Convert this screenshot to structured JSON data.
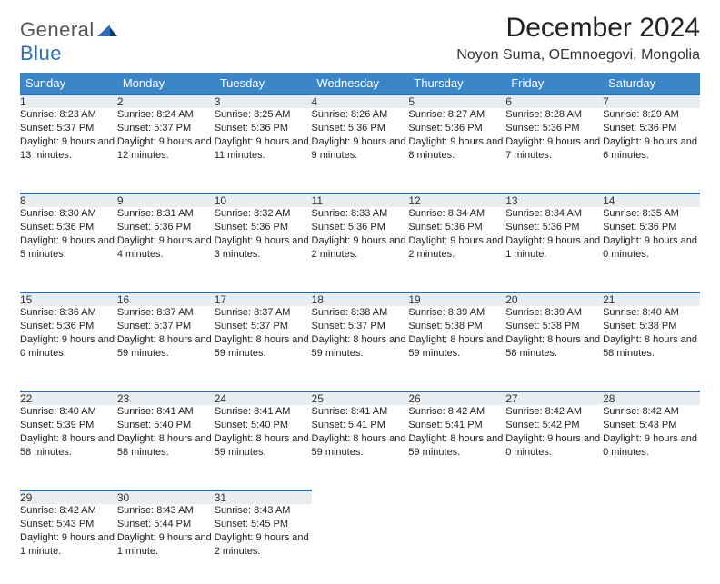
{
  "logo": {
    "word1": "General",
    "word2": "Blue"
  },
  "title": "December 2024",
  "location": "Noyon Suma, OEmnoegovi, Mongolia",
  "colors": {
    "header_bg": "#3b86c7",
    "header_text": "#ffffff",
    "daynum_bg": "#e9edef",
    "daynum_border": "#2a6fb5",
    "logo_gray": "#555555",
    "logo_blue": "#2a6fb5"
  },
  "weekdays": [
    "Sunday",
    "Monday",
    "Tuesday",
    "Wednesday",
    "Thursday",
    "Friday",
    "Saturday"
  ],
  "weeks": [
    [
      {
        "n": "1",
        "sunrise": "8:23 AM",
        "sunset": "5:37 PM",
        "daylight": "9 hours and 13 minutes."
      },
      {
        "n": "2",
        "sunrise": "8:24 AM",
        "sunset": "5:37 PM",
        "daylight": "9 hours and 12 minutes."
      },
      {
        "n": "3",
        "sunrise": "8:25 AM",
        "sunset": "5:36 PM",
        "daylight": "9 hours and 11 minutes."
      },
      {
        "n": "4",
        "sunrise": "8:26 AM",
        "sunset": "5:36 PM",
        "daylight": "9 hours and 9 minutes."
      },
      {
        "n": "5",
        "sunrise": "8:27 AM",
        "sunset": "5:36 PM",
        "daylight": "9 hours and 8 minutes."
      },
      {
        "n": "6",
        "sunrise": "8:28 AM",
        "sunset": "5:36 PM",
        "daylight": "9 hours and 7 minutes."
      },
      {
        "n": "7",
        "sunrise": "8:29 AM",
        "sunset": "5:36 PM",
        "daylight": "9 hours and 6 minutes."
      }
    ],
    [
      {
        "n": "8",
        "sunrise": "8:30 AM",
        "sunset": "5:36 PM",
        "daylight": "9 hours and 5 minutes."
      },
      {
        "n": "9",
        "sunrise": "8:31 AM",
        "sunset": "5:36 PM",
        "daylight": "9 hours and 4 minutes."
      },
      {
        "n": "10",
        "sunrise": "8:32 AM",
        "sunset": "5:36 PM",
        "daylight": "9 hours and 3 minutes."
      },
      {
        "n": "11",
        "sunrise": "8:33 AM",
        "sunset": "5:36 PM",
        "daylight": "9 hours and 2 minutes."
      },
      {
        "n": "12",
        "sunrise": "8:34 AM",
        "sunset": "5:36 PM",
        "daylight": "9 hours and 2 minutes."
      },
      {
        "n": "13",
        "sunrise": "8:34 AM",
        "sunset": "5:36 PM",
        "daylight": "9 hours and 1 minute."
      },
      {
        "n": "14",
        "sunrise": "8:35 AM",
        "sunset": "5:36 PM",
        "daylight": "9 hours and 0 minutes."
      }
    ],
    [
      {
        "n": "15",
        "sunrise": "8:36 AM",
        "sunset": "5:36 PM",
        "daylight": "9 hours and 0 minutes."
      },
      {
        "n": "16",
        "sunrise": "8:37 AM",
        "sunset": "5:37 PM",
        "daylight": "8 hours and 59 minutes."
      },
      {
        "n": "17",
        "sunrise": "8:37 AM",
        "sunset": "5:37 PM",
        "daylight": "8 hours and 59 minutes."
      },
      {
        "n": "18",
        "sunrise": "8:38 AM",
        "sunset": "5:37 PM",
        "daylight": "8 hours and 59 minutes."
      },
      {
        "n": "19",
        "sunrise": "8:39 AM",
        "sunset": "5:38 PM",
        "daylight": "8 hours and 59 minutes."
      },
      {
        "n": "20",
        "sunrise": "8:39 AM",
        "sunset": "5:38 PM",
        "daylight": "8 hours and 58 minutes."
      },
      {
        "n": "21",
        "sunrise": "8:40 AM",
        "sunset": "5:38 PM",
        "daylight": "8 hours and 58 minutes."
      }
    ],
    [
      {
        "n": "22",
        "sunrise": "8:40 AM",
        "sunset": "5:39 PM",
        "daylight": "8 hours and 58 minutes."
      },
      {
        "n": "23",
        "sunrise": "8:41 AM",
        "sunset": "5:40 PM",
        "daylight": "8 hours and 58 minutes."
      },
      {
        "n": "24",
        "sunrise": "8:41 AM",
        "sunset": "5:40 PM",
        "daylight": "8 hours and 59 minutes."
      },
      {
        "n": "25",
        "sunrise": "8:41 AM",
        "sunset": "5:41 PM",
        "daylight": "8 hours and 59 minutes."
      },
      {
        "n": "26",
        "sunrise": "8:42 AM",
        "sunset": "5:41 PM",
        "daylight": "8 hours and 59 minutes."
      },
      {
        "n": "27",
        "sunrise": "8:42 AM",
        "sunset": "5:42 PM",
        "daylight": "9 hours and 0 minutes."
      },
      {
        "n": "28",
        "sunrise": "8:42 AM",
        "sunset": "5:43 PM",
        "daylight": "9 hours and 0 minutes."
      }
    ],
    [
      {
        "n": "29",
        "sunrise": "8:42 AM",
        "sunset": "5:43 PM",
        "daylight": "9 hours and 1 minute."
      },
      {
        "n": "30",
        "sunrise": "8:43 AM",
        "sunset": "5:44 PM",
        "daylight": "9 hours and 1 minute."
      },
      {
        "n": "31",
        "sunrise": "8:43 AM",
        "sunset": "5:45 PM",
        "daylight": "9 hours and 2 minutes."
      },
      null,
      null,
      null,
      null
    ]
  ],
  "labels": {
    "sunrise": "Sunrise:",
    "sunset": "Sunset:",
    "daylight": "Daylight:"
  }
}
